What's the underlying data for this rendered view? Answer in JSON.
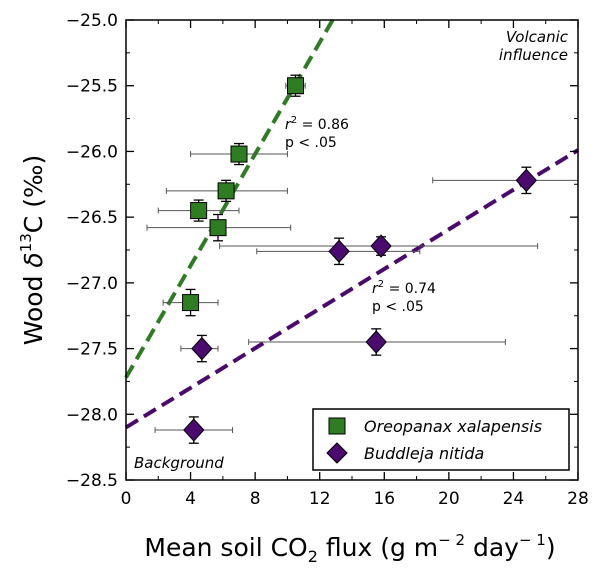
{
  "chart_data": {
    "type": "scatter",
    "title": "",
    "xlabel": {
      "main": "Mean soil CO",
      "sub": "2",
      "mid": " flux (g m",
      "sup1": "− 2",
      "mid2": " day",
      "sup2": "− 1",
      "end": ")"
    },
    "ylabel": {
      "main": "Wood ",
      "delta": "δ",
      "sup": "13",
      "end": "C (‰)"
    },
    "xlim": [
      0,
      28
    ],
    "ylim": [
      -28.5,
      -25.0
    ],
    "xticks": [
      0,
      4,
      8,
      12,
      16,
      20,
      24,
      28
    ],
    "xtick_labels": [
      "0",
      "4",
      "8",
      "12",
      "16",
      "20",
      "24",
      "28"
    ],
    "yticks": [
      -28.5,
      -28.0,
      -27.5,
      -27.0,
      -26.5,
      -26.0,
      -25.5,
      -25.0
    ],
    "ytick_labels": [
      "−28.5",
      "−28.0",
      "−27.5",
      "−27.0",
      "−26.5",
      "−26.0",
      "−25.5",
      "−25.0"
    ],
    "grid": false,
    "legend_position": "bottom-right",
    "series": [
      {
        "name": "Oreopanax xalapensis",
        "marker": "square",
        "color": "#2e7d22",
        "points": [
          {
            "x": 10.5,
            "y": -25.5,
            "xerr": [
              9.9,
              11.1
            ],
            "yerr": 0.08
          },
          {
            "x": 7.0,
            "y": -26.02,
            "xerr": [
              4.0,
              10.0
            ],
            "yerr": 0.08
          },
          {
            "x": 6.2,
            "y": -26.3,
            "xerr": [
              2.5,
              10.0
            ],
            "yerr": 0.08
          },
          {
            "x": 4.5,
            "y": -26.45,
            "xerr": [
              2.0,
              7.0
            ],
            "yerr": 0.08
          },
          {
            "x": 5.7,
            "y": -26.58,
            "xerr": [
              1.3,
              10.2
            ],
            "yerr": 0.1
          },
          {
            "x": 4.0,
            "y": -27.15,
            "xerr": [
              2.3,
              5.7
            ],
            "yerr": 0.1
          }
        ],
        "fit": {
          "r2_label": "r",
          "r2_sup": "2",
          "r2_value": " = 0.86",
          "p_label": "p < .05",
          "line": [
            [
              0,
              -27.72
            ],
            [
              12.8,
              -25.0
            ]
          ]
        }
      },
      {
        "name": "Buddleja nitida",
        "marker": "diamond",
        "color": "#4b0a6e",
        "points": [
          {
            "x": 24.8,
            "y": -26.22,
            "xerr": [
              19.0,
              28.0
            ],
            "yerr": 0.1
          },
          {
            "x": 15.8,
            "y": -26.72,
            "xerr": [
              5.8,
              25.5
            ],
            "yerr": 0.07
          },
          {
            "x": 13.2,
            "y": -26.76,
            "xerr": [
              8.1,
              18.2
            ],
            "yerr": 0.1
          },
          {
            "x": 15.5,
            "y": -27.45,
            "xerr": [
              7.6,
              23.5
            ],
            "yerr": 0.1
          },
          {
            "x": 4.7,
            "y": -27.5,
            "xerr": [
              3.4,
              5.7
            ],
            "yerr": 0.1
          },
          {
            "x": 4.2,
            "y": -28.12,
            "xerr": [
              1.8,
              6.6
            ],
            "yerr": 0.1
          }
        ],
        "fit": {
          "r2_label": "r",
          "r2_sup": "2",
          "r2_value": " = 0.74",
          "p_label": "p < .05",
          "line": [
            [
              0,
              -28.1
            ],
            [
              28,
              -25.99
            ]
          ]
        }
      }
    ],
    "annotations": {
      "top_right_line1": "Volcanic",
      "top_right_line2": "influence",
      "bottom_left": "Background"
    }
  }
}
